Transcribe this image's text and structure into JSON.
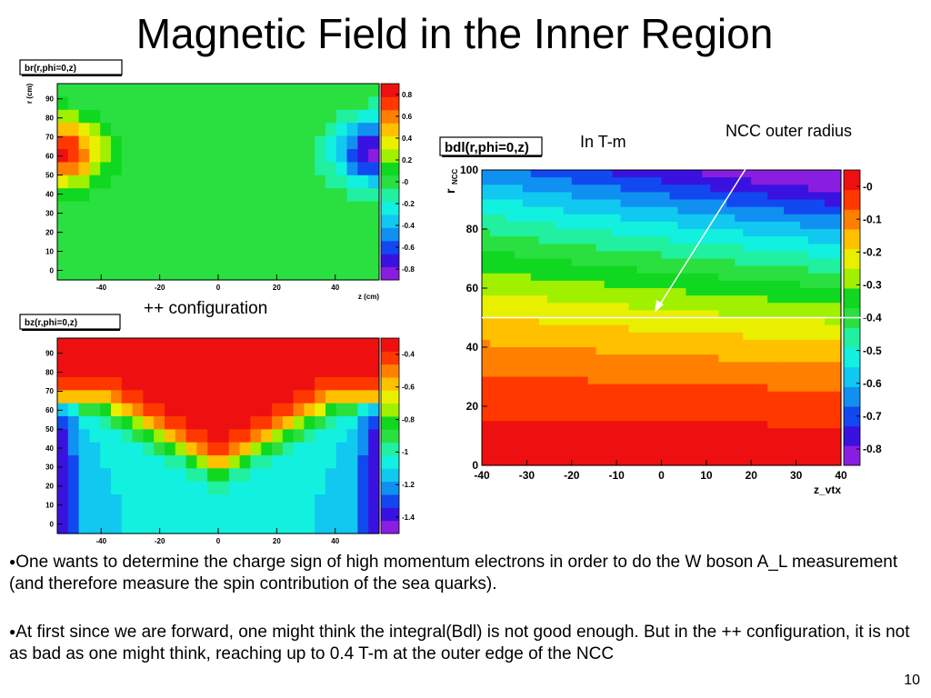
{
  "slide": {
    "title": "Magnetic Field in the Inner Region",
    "config_label": "++ configuration",
    "units_label": "In T-m",
    "annotation": "NCC outer radius",
    "bullets": [
      "One wants to determine the charge sign of high momentum electrons in order to do the W boson A_L measurement (and therefore measure the spin contribution of the sea quarks).",
      "At first since we are forward, one might think the integral(Bdl) is not good enough.  But in the ++ configuration, it is not as bad as one might think, reaching up to 0.4 T-m at the outer edge of the NCC"
    ],
    "page_number": "10"
  },
  "colors": {
    "palette": [
      "#8a1ee0",
      "#3a12e0",
      "#1248f0",
      "#1090f0",
      "#10c8f0",
      "#12f0e0",
      "#20f0a0",
      "#2ae040",
      "#10d820",
      "#a0f000",
      "#e8f000",
      "#ffc000",
      "#ff8000",
      "#ff3800",
      "#ee1010"
    ],
    "arrow": "#ffffff"
  },
  "chart_data": [
    {
      "type": "heatmap",
      "title": "br(r,phi=0,z)",
      "xlabel": "z (cm)",
      "ylabel": "r (cm)",
      "xlim": [
        -55,
        55
      ],
      "ylim": [
        -5,
        98
      ],
      "xticks": [
        "-40",
        "-20",
        "0",
        "20",
        "40"
      ],
      "yticks": [
        "0",
        "10",
        "20",
        "30",
        "40",
        "50",
        "60",
        "70",
        "80",
        "90"
      ],
      "zlim": [
        -0.9,
        0.9
      ],
      "colorbar_ticks": [
        "0.8",
        "0.6",
        "0.4",
        "0.2",
        "-0",
        "-0.2",
        "-0.4",
        "-0.6",
        "-0.8"
      ]
    },
    {
      "type": "heatmap",
      "title": "bz(r,phi=0,z)",
      "xlabel": "",
      "ylabel": "",
      "xlim": [
        -55,
        55
      ],
      "ylim": [
        -5,
        98
      ],
      "xticks": [
        "-40",
        "-20",
        "0",
        "20",
        "40"
      ],
      "yticks": [
        "0",
        "10",
        "20",
        "30",
        "40",
        "50",
        "60",
        "70",
        "80",
        "90"
      ],
      "zlim": [
        -1.5,
        -0.3
      ],
      "colorbar_ticks": [
        "-0.4",
        "-0.6",
        "-0.8",
        "-1",
        "-1.2",
        "-1.4"
      ]
    },
    {
      "type": "heatmap",
      "title": "bdl(r,phi=0,z)",
      "xlabel": "z_vtx",
      "ylabel": "r",
      "ylabel_sub": "NCC",
      "xlim": [
        -40,
        40
      ],
      "ylim": [
        0,
        100
      ],
      "xticks": [
        "-40",
        "-30",
        "-20",
        "-10",
        "0",
        "10",
        "20",
        "30",
        "40"
      ],
      "yticks": [
        "0",
        "20",
        "40",
        "60",
        "80",
        "100"
      ],
      "zlim": [
        -0.85,
        0.05
      ],
      "colorbar_ticks": [
        "-0",
        "-0.1",
        "-0.2",
        "-0.3",
        "-0.4",
        "-0.5",
        "-0.6",
        "-0.7",
        "-0.8"
      ],
      "ncc_outer_radius": 50
    }
  ]
}
